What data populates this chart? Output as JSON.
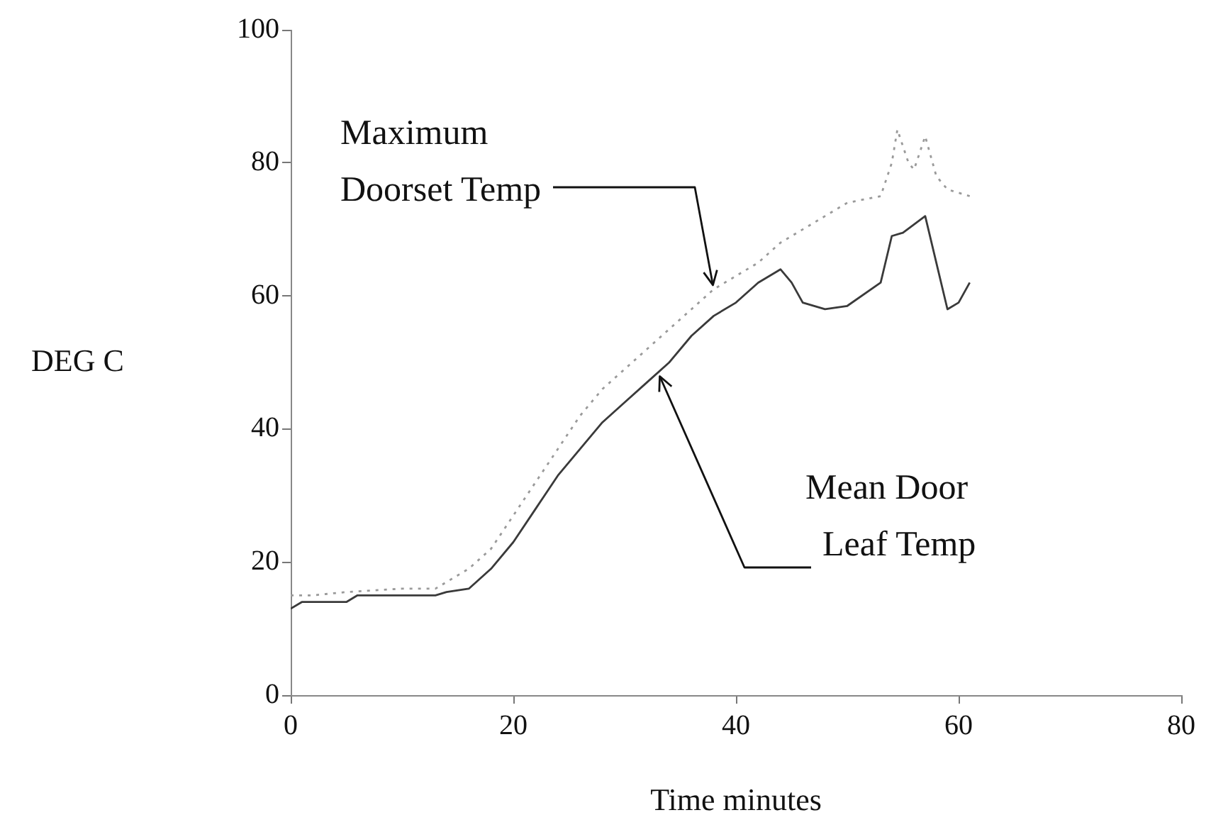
{
  "chart_data": {
    "type": "line",
    "xlabel": "Time minutes",
    "ylabel": "DEG C",
    "xlim": [
      0,
      80
    ],
    "xticks": [
      0,
      20,
      40,
      60,
      80
    ],
    "ylim": [
      0,
      100
    ],
    "yticks": [
      0,
      20,
      40,
      60,
      80,
      100
    ],
    "grid": false,
    "legend": false,
    "marker": "none",
    "series": [
      {
        "line_style": "dotted",
        "color": "#9a9a9a",
        "x": [
          0,
          2,
          5,
          10,
          13,
          14,
          16,
          18,
          20,
          22,
          24,
          26,
          28,
          30,
          32,
          34,
          36,
          38,
          40,
          42,
          44,
          45,
          48,
          50,
          53,
          54,
          54.5,
          55.5,
          56,
          57,
          58,
          59,
          61
        ],
        "values": [
          15,
          15,
          15.5,
          16,
          16,
          17,
          19,
          22,
          27,
          32,
          37,
          42,
          46,
          49,
          52,
          55,
          58,
          61,
          63,
          65,
          68,
          69,
          72,
          74,
          75,
          80,
          85,
          80,
          79,
          84,
          78,
          76,
          75
        ]
      },
      {
        "line_style": "solid",
        "color": "#3a3a3a",
        "x": [
          0,
          1,
          5,
          6,
          13,
          14,
          16,
          18,
          20,
          22,
          24,
          26,
          28,
          30,
          32,
          34,
          36,
          38,
          40,
          42,
          44,
          45,
          46,
          48,
          50,
          53,
          54,
          55,
          57,
          58,
          59,
          60,
          61
        ],
        "values": [
          13,
          14,
          14,
          15,
          15,
          15.5,
          16,
          19,
          23,
          28,
          33,
          37,
          41,
          44,
          47,
          50,
          54,
          57,
          59,
          62,
          64,
          62,
          59,
          58,
          58.5,
          62,
          69,
          69.5,
          72,
          65,
          58,
          59,
          62
        ]
      }
    ],
    "annotations": [
      {
        "text": "Maximum\nDoorset Temp",
        "x": 38,
        "y": 61
      },
      {
        "text": "Mean Door\nLeaf Temp",
        "x": 33,
        "y": 48.5
      }
    ]
  }
}
